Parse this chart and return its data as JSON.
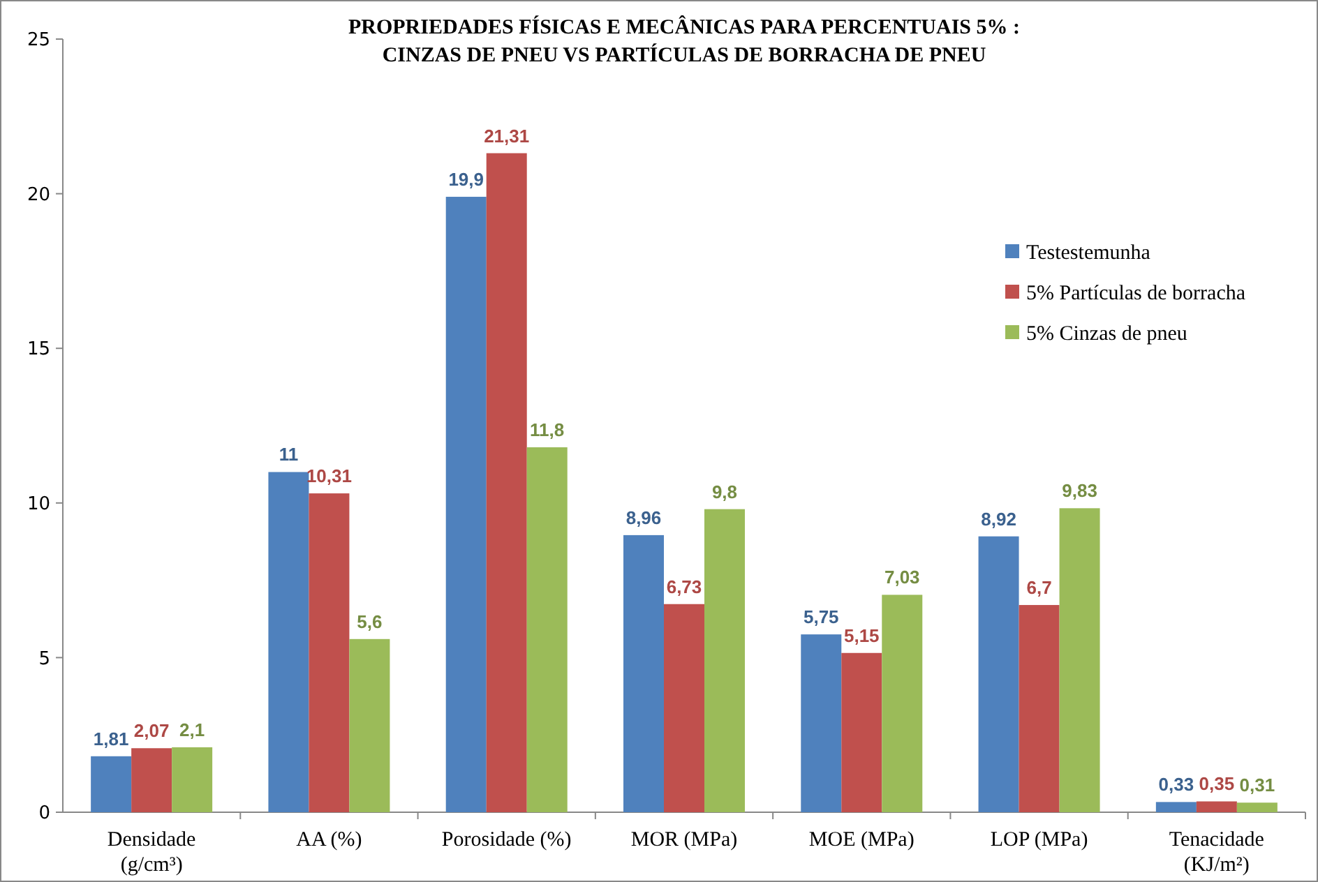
{
  "chart_data": {
    "type": "bar",
    "title": "PROPRIEDADES FÍSICAS E MECÂNICAS PARA PERCENTUAIS  5% :\nCINZAS DE PNEU VS PARTÍCULAS DE BORRACHA DE PNEU",
    "categories": [
      "Densidade\n(g/cm³)",
      "AA (%)",
      "Porosidade (%)",
      "MOR (MPa)",
      "MOE (MPa)",
      "LOP (MPa)",
      "Tenacidade\n(KJ/m²)"
    ],
    "series": [
      {
        "name": "Testestemunha",
        "color": "#4f81bd",
        "values": [
          1.81,
          11,
          19.9,
          8.96,
          5.75,
          8.92,
          0.33
        ],
        "value_labels": [
          "1,81",
          "11",
          "19,9",
          "8,96",
          "5,75",
          "8,92",
          "0,33"
        ]
      },
      {
        "name": "5% Partículas de borracha",
        "color": "#c0504d",
        "values": [
          2.07,
          10.31,
          21.31,
          6.73,
          5.15,
          6.7,
          0.35
        ],
        "value_labels": [
          "2,07",
          "10,31",
          "21,31",
          "6,73",
          "5,15",
          "6,7",
          "0,35"
        ]
      },
      {
        "name": "5% Cinzas de pneu",
        "color": "#9bbb59",
        "values": [
          2.1,
          5.6,
          11.8,
          9.8,
          7.03,
          9.83,
          0.31
        ],
        "value_labels": [
          "2,1",
          "5,6",
          "11,8",
          "9,8",
          "7,03",
          "9,83",
          "0,31"
        ]
      }
    ],
    "ylim": [
      0,
      25
    ],
    "yticks": [
      0,
      5,
      10,
      15,
      20,
      25
    ],
    "grid": false,
    "legend": "right"
  }
}
